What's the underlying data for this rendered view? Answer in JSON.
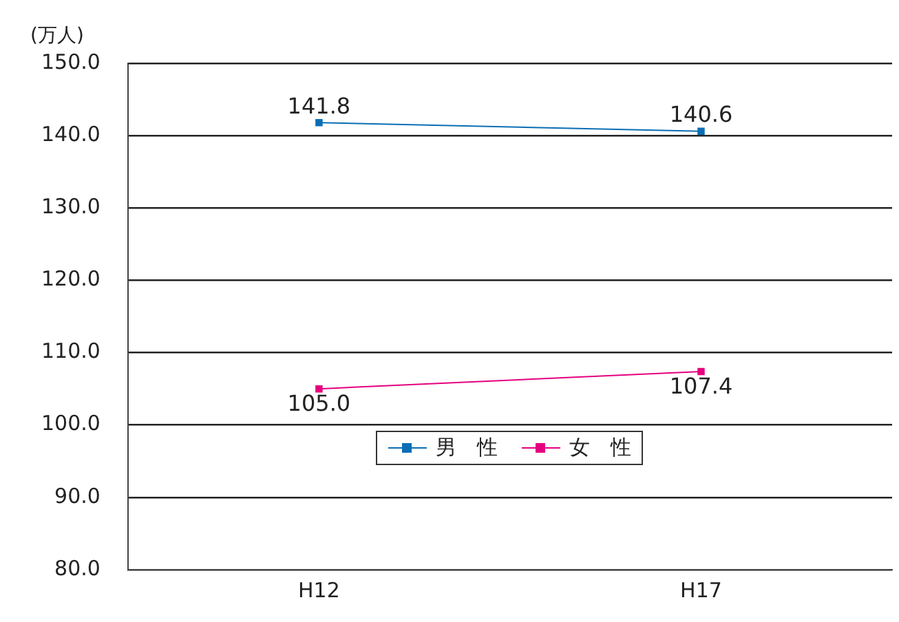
{
  "chart_data": {
    "type": "line",
    "ylabel": "(万人)",
    "categories": [
      "H12",
      "H17"
    ],
    "series": [
      {
        "name": "男　性",
        "color": "#0a6eb4",
        "values": [
          141.8,
          140.6
        ],
        "value_labels": [
          "141.8",
          "140.6"
        ]
      },
      {
        "name": "女　性",
        "color": "#e4007f",
        "values": [
          105.0,
          107.4
        ],
        "value_labels": [
          "105.0",
          "107.4"
        ]
      }
    ],
    "ylim": [
      80,
      150
    ],
    "yticks": [
      {
        "value": 80,
        "label": "80.0"
      },
      {
        "value": 90,
        "label": "90.0"
      },
      {
        "value": 100,
        "label": "100.0"
      },
      {
        "value": 110,
        "label": "110.0"
      },
      {
        "value": 120,
        "label": "120.0"
      },
      {
        "value": 130,
        "label": "130.0"
      },
      {
        "value": 140,
        "label": "140.0"
      },
      {
        "value": 150,
        "label": "150.0"
      }
    ],
    "grid": "y",
    "legend": "bottom",
    "marker": "square",
    "line_style": "solid"
  }
}
